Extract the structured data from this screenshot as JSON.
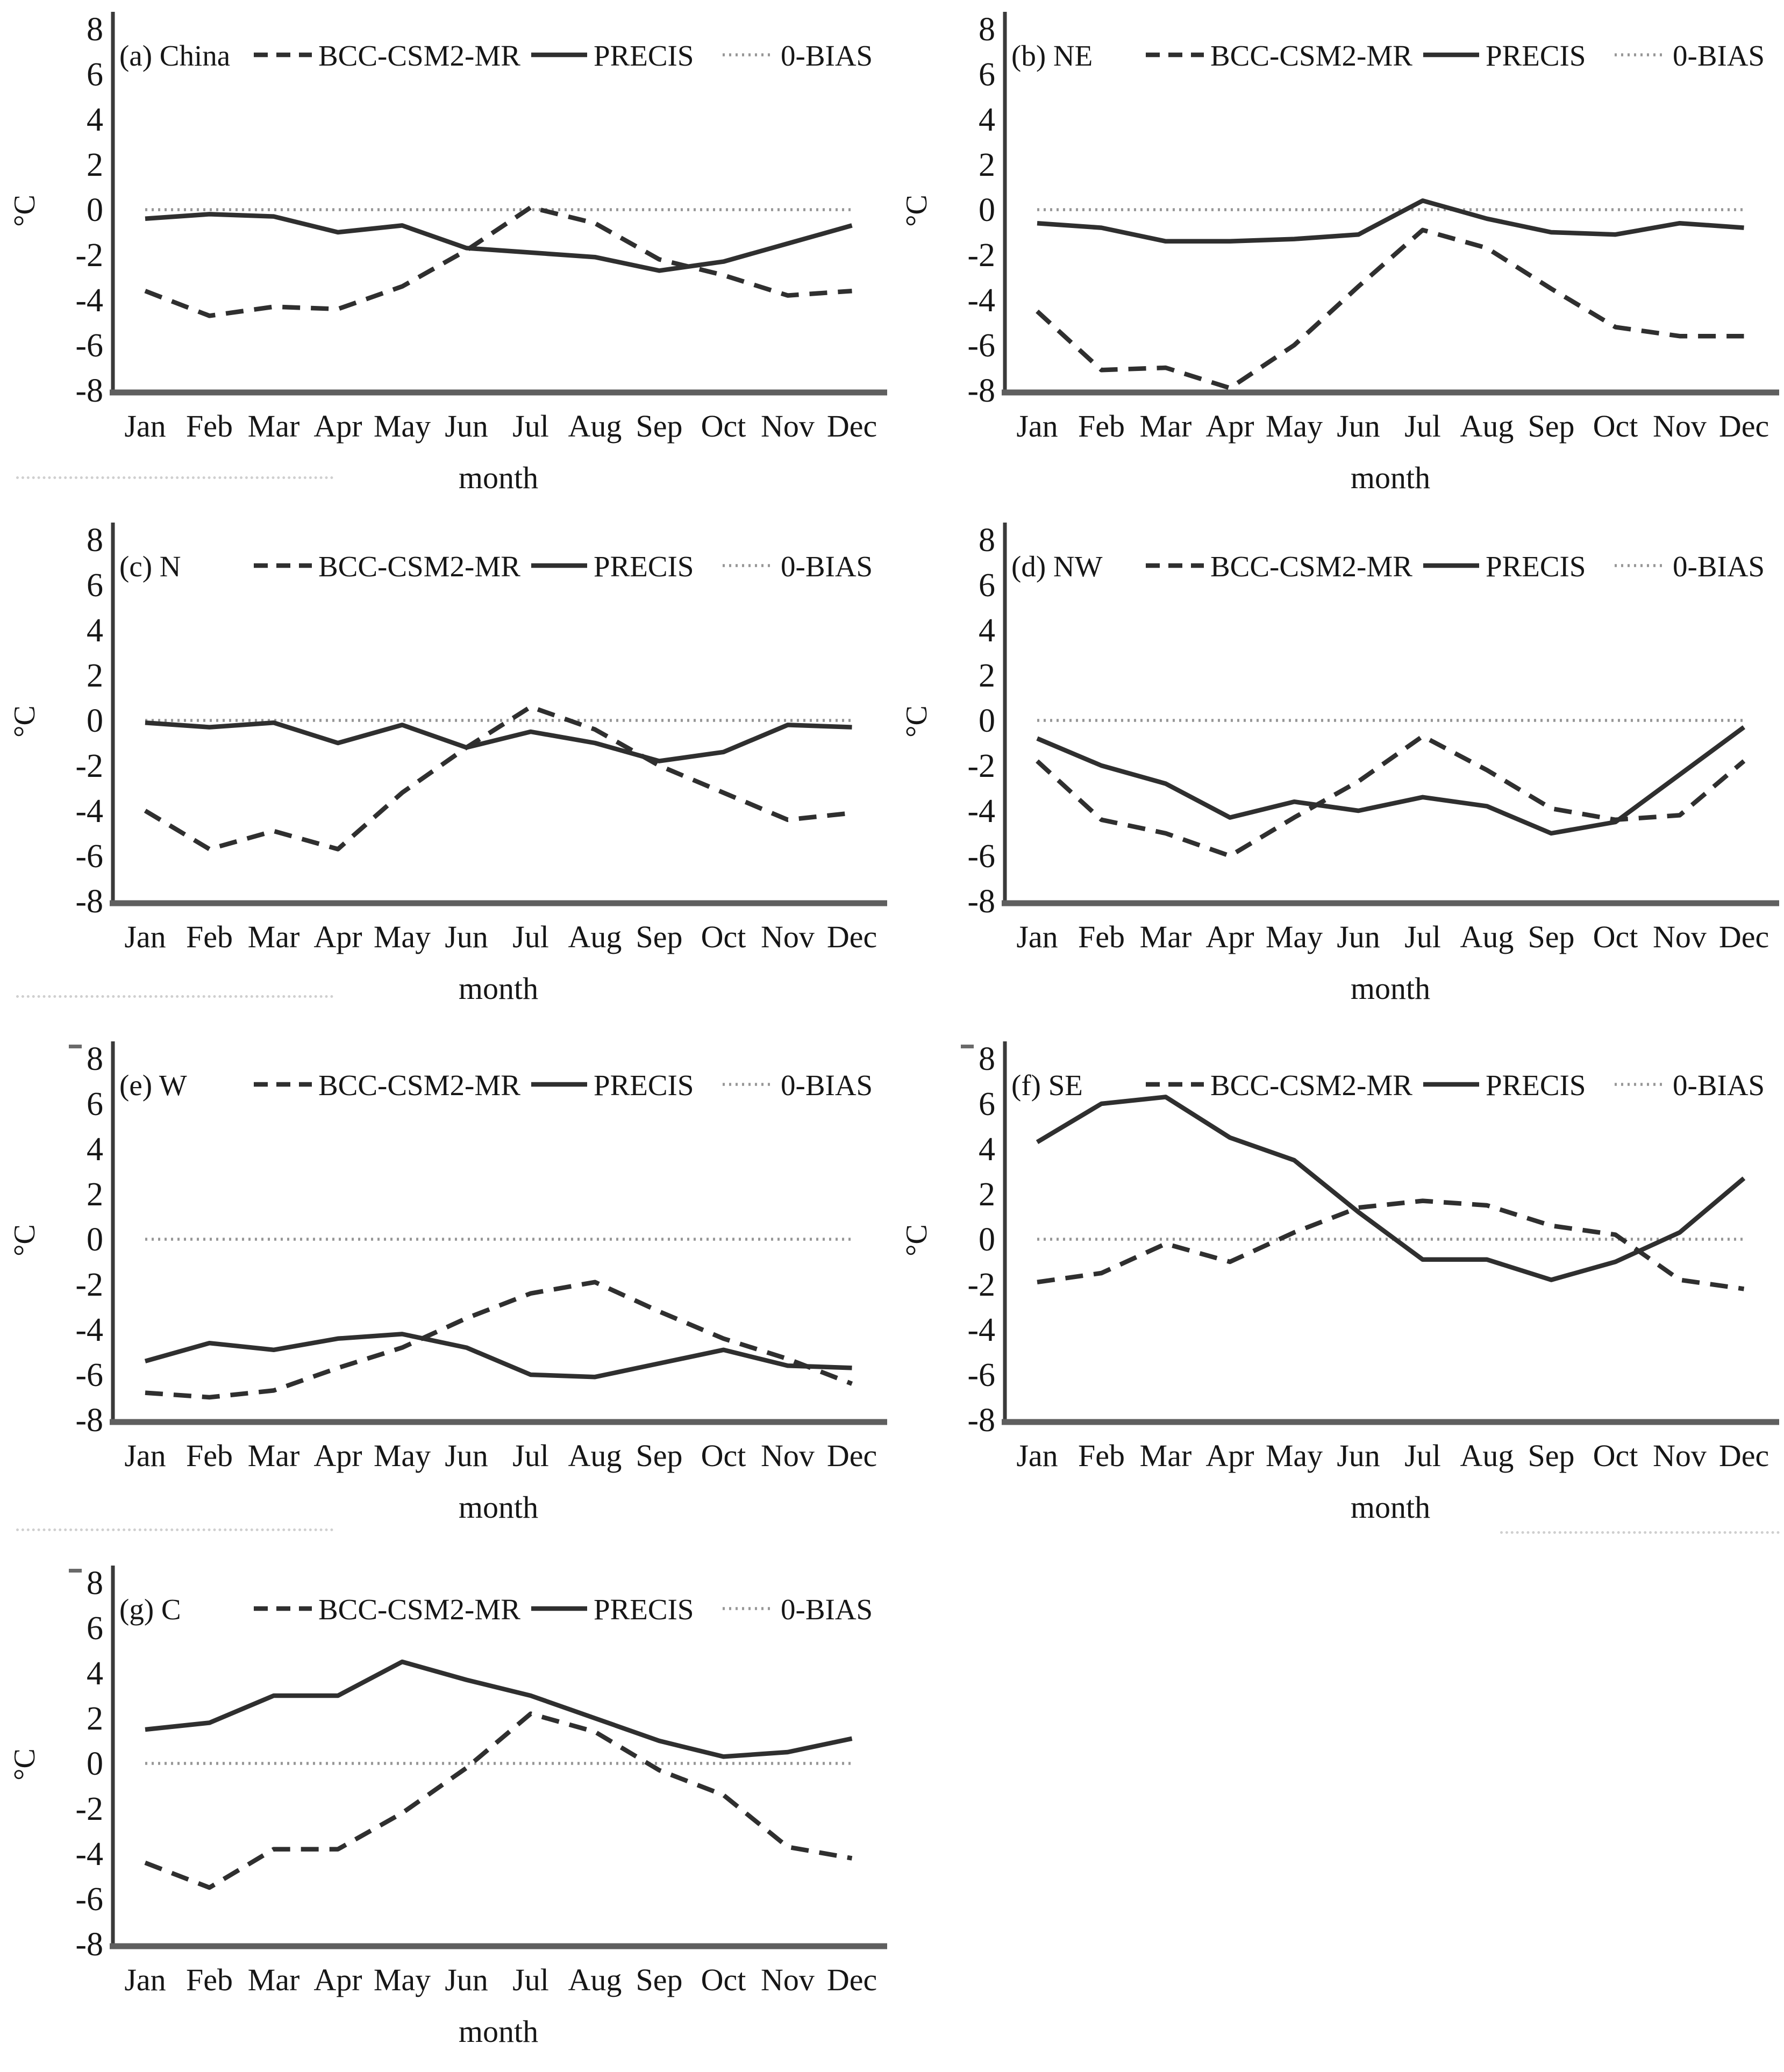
{
  "figure": {
    "y_axis_label": "°C",
    "x_axis_label": "month",
    "y_ticks": [
      8,
      6,
      4,
      2,
      0,
      -2,
      -4,
      -6,
      -8
    ],
    "months": [
      "Jan",
      "Feb",
      "Mar",
      "Apr",
      "May",
      "Jun",
      "Jul",
      "Aug",
      "Sep",
      "Oct",
      "Nov",
      "Dec"
    ],
    "legend": [
      {
        "label": "BCC-CSM2-MR",
        "style": "dashed"
      },
      {
        "label": "PRECIS",
        "style": "solid"
      },
      {
        "label": "0-BIAS",
        "style": "dotted"
      }
    ],
    "colors": {
      "series_line": "#2f2f2f",
      "zero_bias_line": "#979797",
      "axis": "#3a3a3a",
      "baseline": "#5f5f5f",
      "text": "#161616"
    }
  },
  "chart_data": [
    {
      "type": "line",
      "title": "(a) China",
      "region": "China",
      "xlabel": "month",
      "ylabel": "°C",
      "ylim": [
        -8,
        8
      ],
      "categories": [
        "Jan",
        "Feb",
        "Mar",
        "Apr",
        "May",
        "Jun",
        "Jul",
        "Aug",
        "Sep",
        "Oct",
        "Nov",
        "Dec"
      ],
      "series": [
        {
          "name": "BCC-CSM2-MR",
          "style": "dashed",
          "values": [
            -3.6,
            -4.7,
            -4.3,
            -4.4,
            -3.4,
            -1.8,
            0.1,
            -0.6,
            -2.2,
            -2.9,
            -3.8,
            -3.6
          ]
        },
        {
          "name": "PRECIS",
          "style": "solid",
          "values": [
            -0.4,
            -0.2,
            -0.3,
            -1.0,
            -0.7,
            -1.7,
            -1.9,
            -2.1,
            -2.7,
            -2.3,
            -1.5,
            -0.7
          ]
        },
        {
          "name": "0-BIAS",
          "style": "dotted",
          "values": [
            0,
            0,
            0,
            0,
            0,
            0,
            0,
            0,
            0,
            0,
            0,
            0
          ]
        }
      ]
    },
    {
      "type": "line",
      "title": "(b) NE",
      "region": "NE",
      "xlabel": "month",
      "ylabel": "°C",
      "ylim": [
        -8,
        8
      ],
      "categories": [
        "Jan",
        "Feb",
        "Mar",
        "Apr",
        "May",
        "Jun",
        "Jul",
        "Aug",
        "Sep",
        "Oct",
        "Nov",
        "Dec"
      ],
      "series": [
        {
          "name": "BCC-CSM2-MR",
          "style": "dashed",
          "values": [
            -4.5,
            -7.1,
            -7.0,
            -7.9,
            -6.0,
            -3.4,
            -0.9,
            -1.7,
            -3.5,
            -5.2,
            -5.6,
            -5.6
          ]
        },
        {
          "name": "PRECIS",
          "style": "solid",
          "values": [
            -0.6,
            -0.8,
            -1.4,
            -1.4,
            -1.3,
            -1.1,
            0.4,
            -0.4,
            -1.0,
            -1.1,
            -0.6,
            -0.8
          ]
        },
        {
          "name": "0-BIAS",
          "style": "dotted",
          "values": [
            0,
            0,
            0,
            0,
            0,
            0,
            0,
            0,
            0,
            0,
            0,
            0
          ]
        }
      ]
    },
    {
      "type": "line",
      "title": "(c) N",
      "region": "N",
      "xlabel": "month",
      "ylabel": "°C",
      "ylim": [
        -8,
        8
      ],
      "categories": [
        "Jan",
        "Feb",
        "Mar",
        "Apr",
        "May",
        "Jun",
        "Jul",
        "Aug",
        "Sep",
        "Oct",
        "Nov",
        "Dec"
      ],
      "series": [
        {
          "name": "BCC-CSM2-MR",
          "style": "dashed",
          "values": [
            -4.0,
            -5.7,
            -4.9,
            -5.7,
            -3.2,
            -1.2,
            0.6,
            -0.4,
            -2.0,
            -3.2,
            -4.4,
            -4.1
          ]
        },
        {
          "name": "PRECIS",
          "style": "solid",
          "values": [
            -0.1,
            -0.3,
            -0.1,
            -1.0,
            -0.2,
            -1.2,
            -0.5,
            -1.0,
            -1.8,
            -1.4,
            -0.2,
            -0.3
          ]
        },
        {
          "name": "0-BIAS",
          "style": "dotted",
          "values": [
            0,
            0,
            0,
            0,
            0,
            0,
            0,
            0,
            0,
            0,
            0,
            0
          ]
        }
      ]
    },
    {
      "type": "line",
      "title": "(d) NW",
      "region": "NW",
      "xlabel": "month",
      "ylabel": "°C",
      "ylim": [
        -8,
        8
      ],
      "categories": [
        "Jan",
        "Feb",
        "Mar",
        "Apr",
        "May",
        "Jun",
        "Jul",
        "Aug",
        "Sep",
        "Oct",
        "Nov",
        "Dec"
      ],
      "series": [
        {
          "name": "BCC-CSM2-MR",
          "style": "dashed",
          "values": [
            -1.8,
            -4.4,
            -5.0,
            -6.0,
            -4.3,
            -2.7,
            -0.7,
            -2.2,
            -3.9,
            -4.4,
            -4.2,
            -1.8
          ]
        },
        {
          "name": "PRECIS",
          "style": "solid",
          "values": [
            -0.8,
            -2.0,
            -2.8,
            -4.3,
            -3.6,
            -4.0,
            -3.4,
            -3.8,
            -5.0,
            -4.5,
            -2.4,
            -0.3
          ]
        },
        {
          "name": "0-BIAS",
          "style": "dotted",
          "values": [
            0,
            0,
            0,
            0,
            0,
            0,
            0,
            0,
            0,
            0,
            0,
            0
          ]
        }
      ]
    },
    {
      "type": "line",
      "title": "(e) W",
      "region": "W",
      "xlabel": "month",
      "ylabel": "°C",
      "ylim": [
        -8,
        8
      ],
      "categories": [
        "Jan",
        "Feb",
        "Mar",
        "Apr",
        "May",
        "Jun",
        "Jul",
        "Aug",
        "Sep",
        "Oct",
        "Nov",
        "Dec"
      ],
      "series": [
        {
          "name": "BCC-CSM2-MR",
          "style": "dashed",
          "values": [
            -6.8,
            -7.0,
            -6.7,
            -5.7,
            -4.8,
            -3.5,
            -2.4,
            -1.9,
            -3.2,
            -4.4,
            -5.3,
            -6.4
          ]
        },
        {
          "name": "PRECIS",
          "style": "solid",
          "values": [
            -5.4,
            -4.6,
            -4.9,
            -4.4,
            -4.2,
            -4.8,
            -6.0,
            -6.1,
            -5.5,
            -4.9,
            -5.6,
            -5.7
          ]
        },
        {
          "name": "0-BIAS",
          "style": "dotted",
          "values": [
            0,
            0,
            0,
            0,
            0,
            0,
            0,
            0,
            0,
            0,
            0,
            0
          ]
        }
      ]
    },
    {
      "type": "line",
      "title": "(f) SE",
      "region": "SE",
      "xlabel": "month",
      "ylabel": "°C",
      "ylim": [
        -8,
        8
      ],
      "categories": [
        "Jan",
        "Feb",
        "Mar",
        "Apr",
        "May",
        "Jun",
        "Jul",
        "Aug",
        "Sep",
        "Oct",
        "Nov",
        "Dec"
      ],
      "series": [
        {
          "name": "BCC-CSM2-MR",
          "style": "dashed",
          "values": [
            -1.9,
            -1.5,
            -0.2,
            -1.0,
            0.3,
            1.4,
            1.7,
            1.5,
            0.6,
            0.2,
            -1.8,
            -2.2
          ]
        },
        {
          "name": "PRECIS",
          "style": "solid",
          "values": [
            4.3,
            6.0,
            6.3,
            4.5,
            3.5,
            1.2,
            -0.9,
            -0.9,
            -1.8,
            -1.0,
            0.3,
            2.7
          ]
        },
        {
          "name": "0-BIAS",
          "style": "dotted",
          "values": [
            0,
            0,
            0,
            0,
            0,
            0,
            0,
            0,
            0,
            0,
            0,
            0
          ]
        }
      ]
    },
    {
      "type": "line",
      "title": "(g) C",
      "region": "C",
      "xlabel": "month",
      "ylabel": "°C",
      "ylim": [
        -8,
        8
      ],
      "categories": [
        "Jan",
        "Feb",
        "Mar",
        "Apr",
        "May",
        "Jun",
        "Jul",
        "Aug",
        "Sep",
        "Oct",
        "Nov",
        "Dec"
      ],
      "series": [
        {
          "name": "BCC-CSM2-MR",
          "style": "dashed",
          "values": [
            -4.4,
            -5.5,
            -3.8,
            -3.8,
            -2.2,
            -0.2,
            2.2,
            1.4,
            -0.3,
            -1.4,
            -3.7,
            -4.2
          ]
        },
        {
          "name": "PRECIS",
          "style": "solid",
          "values": [
            1.5,
            1.8,
            3.0,
            3.0,
            4.5,
            3.7,
            3.0,
            2.0,
            1.0,
            0.3,
            0.5,
            1.1
          ]
        },
        {
          "name": "0-BIAS",
          "style": "dotted",
          "values": [
            0,
            0,
            0,
            0,
            0,
            0,
            0,
            0,
            0,
            0,
            0,
            0
          ]
        }
      ]
    }
  ]
}
